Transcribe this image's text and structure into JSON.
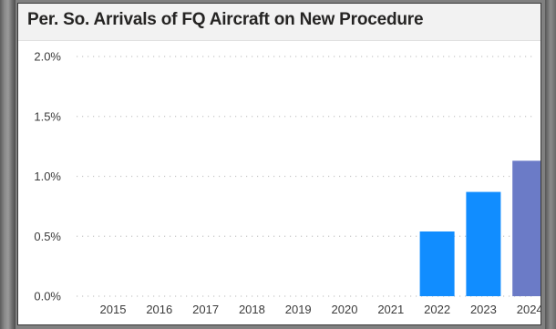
{
  "chart_data": {
    "type": "bar",
    "title": "Per. So. Arrivals of FQ Aircraft on New Procedure",
    "xlabel": "",
    "ylabel": "",
    "categories": [
      "2015",
      "2016",
      "2017",
      "2018",
      "2019",
      "2020",
      "2021",
      "2022",
      "2023",
      "2024"
    ],
    "values": [
      0,
      0,
      0,
      0,
      0,
      0,
      0,
      0.54,
      0.87,
      1.13
    ],
    "bar_colors": [
      "#118DFF",
      "#118DFF",
      "#118DFF",
      "#118DFF",
      "#118DFF",
      "#118DFF",
      "#118DFF",
      "#118DFF",
      "#118DFF",
      "#6B7BC7"
    ],
    "ylim": [
      0,
      2.0
    ],
    "yticks": [
      0,
      0.5,
      1.0,
      1.5,
      2.0
    ],
    "ytick_labels": [
      "0.0%",
      "0.5%",
      "1.0%",
      "1.5%",
      "2.0%"
    ],
    "grid": true,
    "legend": "none"
  }
}
